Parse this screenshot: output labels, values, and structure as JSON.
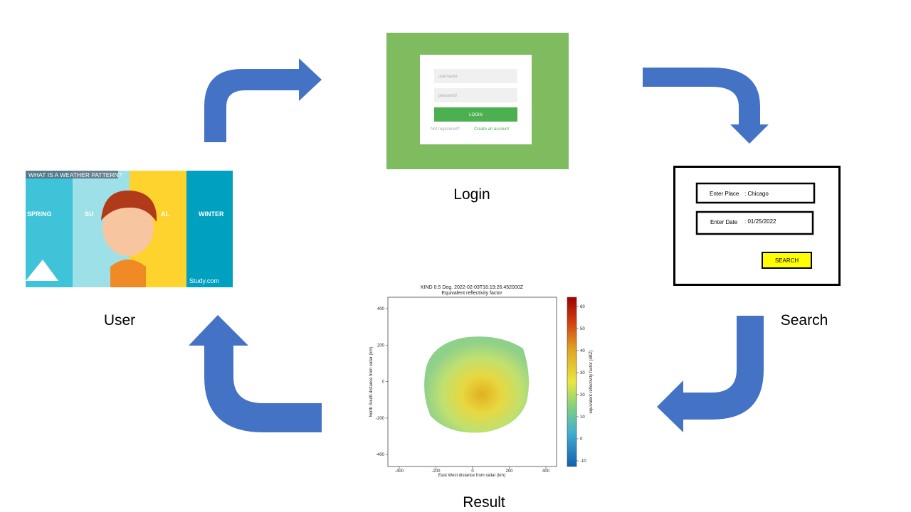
{
  "user": {
    "label": "User",
    "poster": {
      "title": "WHAT IS A WEATHER PATTERN?",
      "seasons": [
        "SPRING",
        "SU",
        "AL",
        "WINTER"
      ],
      "brand": "Study.com"
    }
  },
  "login": {
    "label": "Login",
    "form": {
      "username": "username",
      "password": "password",
      "button": "LOGIN",
      "prompt": "Not registered?",
      "link": "Create an account"
    }
  },
  "search": {
    "label": "Search",
    "form": {
      "place_label": "Enter Place",
      "place_value": ": Chicago",
      "date_label": "Enter Date",
      "date_value": ": 01/25/2022",
      "button": "SEARCH"
    }
  },
  "result": {
    "label": "Result",
    "plot": {
      "title": "KIND 0.5 Deg. 2022-02-03T16:19:26.452000Z",
      "subtitle": "Equivalent reflectivity factor",
      "x_label": "East West distance from radar (km)",
      "y_label": "North South distance from radar (km)",
      "colorbar_label": "equivalent reflectivity factor (dBZ)",
      "x_ticks": [
        "-400",
        "-200",
        "0",
        "200",
        "400"
      ],
      "y_ticks": [
        "400",
        "200",
        "0",
        "-200",
        "-400"
      ],
      "colorbar_ticks": [
        "60",
        "50",
        "40",
        "30",
        "20",
        "10",
        "0",
        "-10"
      ]
    }
  }
}
